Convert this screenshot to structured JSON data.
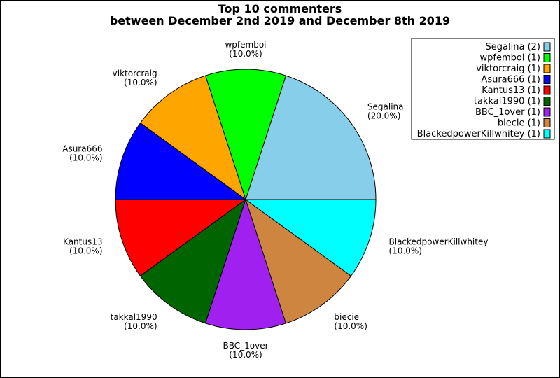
{
  "chart_data": {
    "type": "pie",
    "title_lines": [
      "Top 10 commenters",
      "between December 2nd 2019 and December 8th 2019"
    ],
    "slices": [
      {
        "label": "Segalina",
        "value": 2,
        "percent": "(20.0%)",
        "legend": "Segalina (2)",
        "color": "#87CEEB"
      },
      {
        "label": "wpfemboi",
        "value": 1,
        "percent": "(10.0%)",
        "legend": "wpfemboi (1)",
        "color": "#00FF00"
      },
      {
        "label": "viktorcraig",
        "value": 1,
        "percent": "(10.0%)",
        "legend": "viktorcraig (1)",
        "color": "#FFA500"
      },
      {
        "label": "Asura666",
        "value": 1,
        "percent": "(10.0%)",
        "legend": "Asura666 (1)",
        "color": "#0000FF"
      },
      {
        "label": "Kantus13",
        "value": 1,
        "percent": "(10.0%)",
        "legend": "Kantus13 (1)",
        "color": "#FF0000"
      },
      {
        "label": "takkal1990",
        "value": 1,
        "percent": "(10.0%)",
        "legend": "takkal1990 (1)",
        "color": "#006400"
      },
      {
        "label": "BBC_1over",
        "value": 1,
        "percent": "(10.0%)",
        "legend": "BBC_1over (1)",
        "color": "#A020F0"
      },
      {
        "label": "biecie",
        "value": 1,
        "percent": "(10.0%)",
        "legend": "biecie (1)",
        "color": "#CD853F"
      },
      {
        "label": "BlackedpowerKillwhitey",
        "value": 1,
        "percent": "(10.0%)",
        "legend": "BlackedpowerKillwhitey (1)",
        "color": "#00FFFF"
      }
    ],
    "legend_position": "top-right"
  }
}
